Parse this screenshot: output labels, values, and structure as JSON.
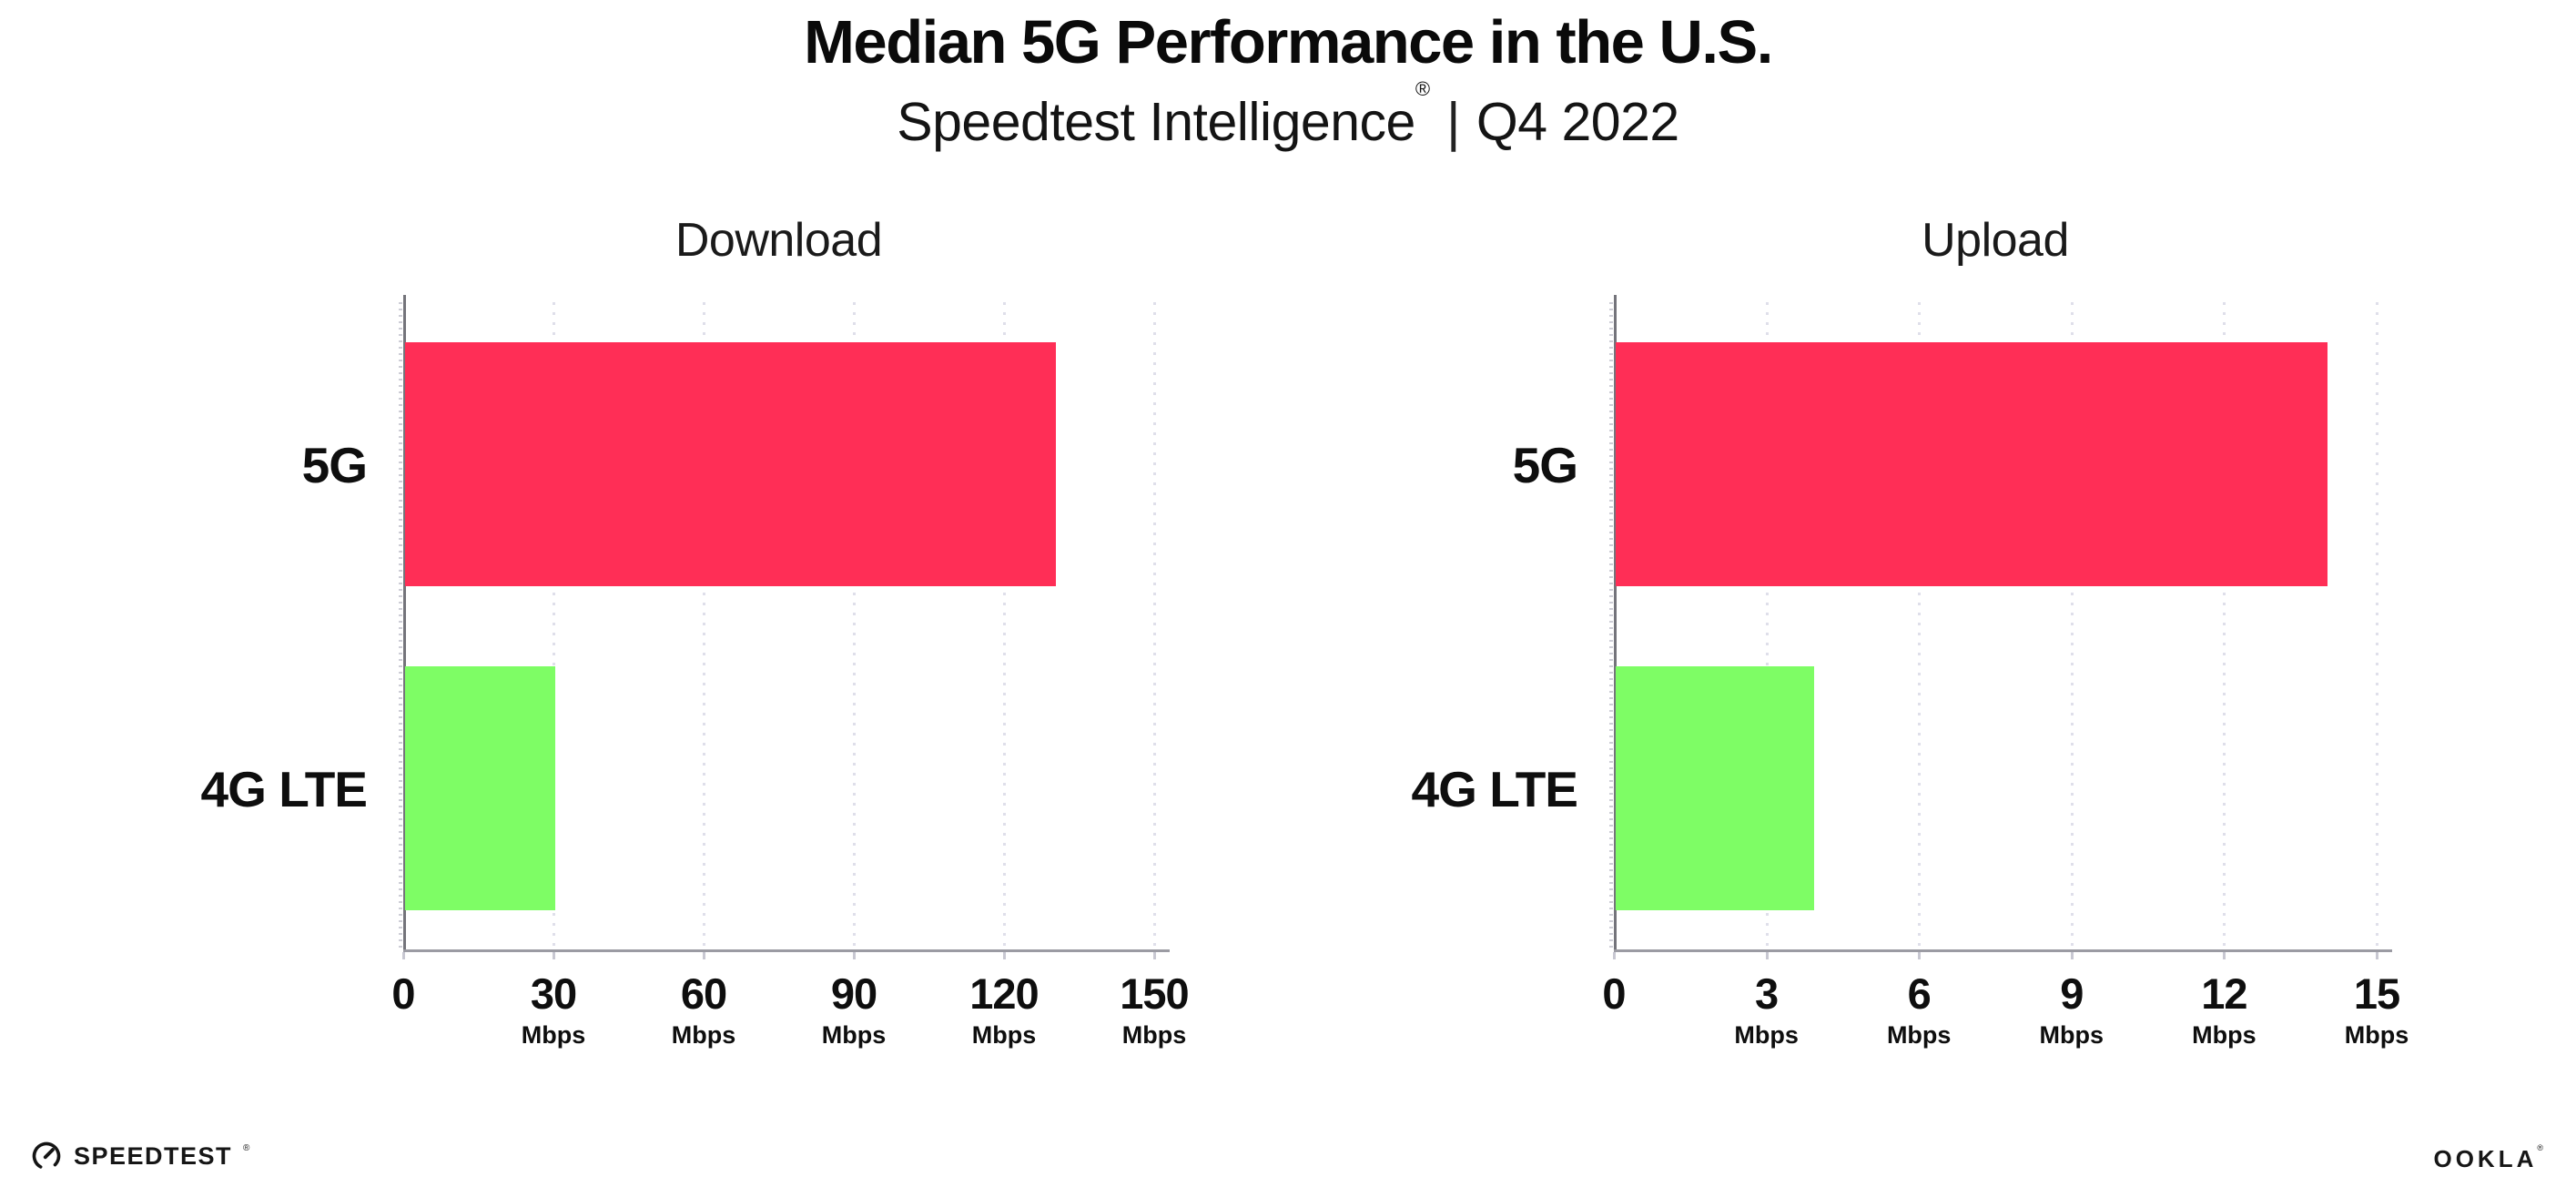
{
  "header": {
    "title": "Median 5G Performance in the U.S.",
    "subtitle": {
      "brand": "Speedtest Intelligence",
      "mark": "®",
      "separator": "|",
      "period": "Q4 2022"
    }
  },
  "chart_data": [
    {
      "type": "bar",
      "orientation": "horizontal",
      "title": "Download",
      "categories": [
        "5G",
        "4G LTE"
      ],
      "values": [
        130,
        30
      ],
      "unit": "Mbps",
      "xlabel": "Mbps",
      "xlim": [
        0,
        150
      ],
      "ticks": [
        0,
        30,
        60,
        90,
        120,
        150
      ],
      "grid": "dotted-vertical",
      "legend": "none",
      "bar_colors": [
        "#FF2E56",
        "#7EFD65"
      ]
    },
    {
      "type": "bar",
      "orientation": "horizontal",
      "title": "Upload",
      "categories": [
        "5G",
        "4G LTE"
      ],
      "values": [
        14,
        3.9
      ],
      "unit": "Mbps",
      "xlabel": "Mbps",
      "xlim": [
        0,
        15
      ],
      "ticks": [
        0,
        3,
        6,
        9,
        12,
        15
      ],
      "grid": "dotted-vertical",
      "legend": "none",
      "bar_colors": [
        "#FF2E56",
        "#7EFD65"
      ]
    }
  ],
  "footer": {
    "speedtest": {
      "label": "SPEEDTEST",
      "mark": "®"
    },
    "ookla": {
      "label": "OOKLA",
      "mark": "®"
    }
  },
  "colors": {
    "bar_5g": "#FF2E56",
    "bar_4g_lte": "#7EFD65",
    "gridline": "#DFDFEA",
    "y_axis": "#74747B",
    "x_axis": "#9B9BA3",
    "text": "#111111"
  }
}
